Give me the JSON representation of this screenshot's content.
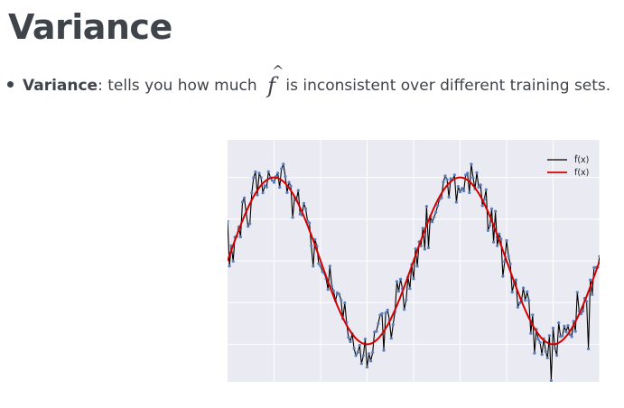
{
  "page": {
    "title": "Variance",
    "bullet": {
      "term": "Variance",
      "colon": ":",
      "pre_text": " tells you how much",
      "math_symbol": "f",
      "math_accent": "^",
      "post_text": "is inconsistent over different training sets."
    }
  },
  "colors": {
    "plot_background": "#eaeaf2",
    "grid": "#ffffff",
    "estimate_line": "#000000",
    "true_line": "#d40000",
    "points": "#5b7db8"
  },
  "chart_data": {
    "type": "line",
    "grid": true,
    "legend_placement": "top-right",
    "xlim": [
      0,
      1
    ],
    "ylim": [
      -1.45,
      1.45
    ],
    "true_function": {
      "name": "f(x)",
      "amplitude": 1.0,
      "periods": 2.0,
      "phase_periods": 0.0
    },
    "series": [
      {
        "name": "f̂(x)",
        "style": "black line with dot markers"
      },
      {
        "name": "f(x)",
        "style": "red line"
      }
    ],
    "estimate_noise_std": 0.17,
    "n_samples": 200
  }
}
